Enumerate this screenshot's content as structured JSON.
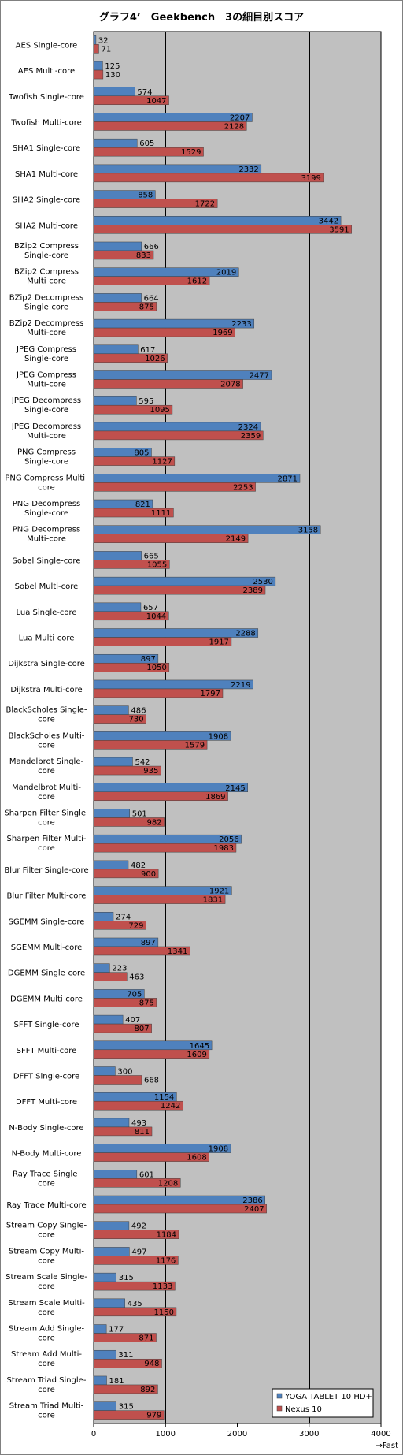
{
  "chart_data": {
    "type": "bar",
    "orientation": "horizontal",
    "title": "グラフ4’　Geekbench　3の細目別スコア",
    "x_axis_note": "→Fast",
    "xlim": [
      0,
      4000
    ],
    "xticks": [
      0,
      1000,
      2000,
      3000,
      4000
    ],
    "grid": true,
    "legend_position": "bottom-right",
    "colors": {
      "series1": "#4f81bd",
      "series2": "#c0504d",
      "plot_bg": "#c0c0c0",
      "grid": "#000000"
    },
    "categories": [
      "AES Single-core",
      "AES Multi-core",
      "Twofish Single-core",
      "Twofish Multi-core",
      "SHA1 Single-core",
      "SHA1 Multi-core",
      "SHA2 Single-core",
      "SHA2 Multi-core",
      "BZip2 Compress Single-core",
      "BZip2 Compress Multi-core",
      "BZip2 Decompress Single-core",
      "BZip2 Decompress Multi-core",
      "JPEG Compress Single-core",
      "JPEG Compress Multi-core",
      "JPEG Decompress Single-core",
      "JPEG Decompress Multi-core",
      "PNG Compress Single-core",
      "PNG Compress Multi-core",
      "PNG Decompress Single-core",
      "PNG Decompress Multi-core",
      "Sobel Single-core",
      "Sobel Multi-core",
      "Lua Single-core",
      "Lua Multi-core",
      "Dijkstra Single-core",
      "Dijkstra Multi-core",
      "BlackScholes Single-core",
      "BlackScholes Multi-core",
      "Mandelbrot Single-core",
      "Mandelbrot Multi-core",
      "Sharpen Filter Single-core",
      "Sharpen Filter Multi-core",
      "Blur Filter Single-core",
      "Blur Filter Multi-core",
      "SGEMM Single-core",
      "SGEMM Multi-core",
      "DGEMM Single-core",
      "DGEMM Multi-core",
      "SFFT Single-core",
      "SFFT Multi-core",
      "DFFT Single-core",
      "DFFT Multi-core",
      "N-Body Single-core",
      "N-Body Multi-core",
      "Ray Trace Single-core",
      "Ray Trace Multi-core",
      "Stream Copy Single-core",
      "Stream Copy Multi-core",
      "Stream Scale Single-core",
      "Stream Scale Multi-core",
      "Stream Add Single-core",
      "Stream Add Multi-core",
      "Stream Triad Single-core",
      "Stream Triad Multi-core"
    ],
    "category_lines": [
      [
        "AES Single-core"
      ],
      [
        "AES Multi-core"
      ],
      [
        "Twofish Single-core"
      ],
      [
        "Twofish Multi-core"
      ],
      [
        "SHA1 Single-core"
      ],
      [
        "SHA1 Multi-core"
      ],
      [
        "SHA2 Single-core"
      ],
      [
        "SHA2 Multi-core"
      ],
      [
        "BZip2 Compress",
        "Single-core"
      ],
      [
        "BZip2 Compress",
        "Multi-core"
      ],
      [
        "BZip2 Decompress",
        "Single-core"
      ],
      [
        "BZip2 Decompress",
        "Multi-core"
      ],
      [
        "JPEG Compress",
        "Single-core"
      ],
      [
        "JPEG Compress",
        "Multi-core"
      ],
      [
        "JPEG Decompress",
        "Single-core"
      ],
      [
        "JPEG Decompress",
        "Multi-core"
      ],
      [
        "PNG Compress",
        "Single-core"
      ],
      [
        "PNG Compress Multi-",
        "core"
      ],
      [
        "PNG Decompress",
        "Single-core"
      ],
      [
        "PNG Decompress",
        "Multi-core"
      ],
      [
        "Sobel Single-core"
      ],
      [
        "Sobel Multi-core"
      ],
      [
        "Lua Single-core"
      ],
      [
        "Lua Multi-core"
      ],
      [
        "Dijkstra Single-core"
      ],
      [
        "Dijkstra Multi-core"
      ],
      [
        "BlackScholes Single-",
        "core"
      ],
      [
        "BlackScholes Multi-",
        "core"
      ],
      [
        "Mandelbrot Single-",
        "core"
      ],
      [
        "Mandelbrot Multi-",
        "core"
      ],
      [
        "Sharpen Filter Single-",
        "core"
      ],
      [
        "Sharpen Filter Multi-",
        "core"
      ],
      [
        "Blur Filter Single-core"
      ],
      [
        "Blur Filter Multi-core"
      ],
      [
        "SGEMM Single-core"
      ],
      [
        "SGEMM Multi-core"
      ],
      [
        "DGEMM Single-core"
      ],
      [
        "DGEMM Multi-core"
      ],
      [
        "SFFT Single-core"
      ],
      [
        "SFFT Multi-core"
      ],
      [
        "DFFT Single-core"
      ],
      [
        "DFFT Multi-core"
      ],
      [
        "N-Body Single-core"
      ],
      [
        "N-Body Multi-core"
      ],
      [
        "Ray Trace Single-",
        "core"
      ],
      [
        "Ray Trace Multi-core"
      ],
      [
        "Stream Copy Single-",
        "core"
      ],
      [
        "Stream Copy Multi-",
        "core"
      ],
      [
        "Stream Scale Single-",
        "core"
      ],
      [
        "Stream Scale Multi-",
        "core"
      ],
      [
        "Stream Add Single-",
        "core"
      ],
      [
        "Stream Add Multi-",
        "core"
      ],
      [
        "Stream Triad Single-",
        "core"
      ],
      [
        "Stream Triad Multi-",
        "core"
      ]
    ],
    "series": [
      {
        "name": "YOGA TABLET 10 HD+",
        "values": [
          32,
          125,
          574,
          2207,
          605,
          2332,
          858,
          3442,
          666,
          2019,
          664,
          2233,
          617,
          2477,
          595,
          2324,
          805,
          2871,
          821,
          3158,
          665,
          2530,
          657,
          2288,
          897,
          2219,
          486,
          1908,
          542,
          2145,
          501,
          2056,
          482,
          1921,
          274,
          897,
          223,
          705,
          407,
          1645,
          300,
          1154,
          493,
          1908,
          601,
          2386,
          492,
          497,
          315,
          435,
          177,
          311,
          181,
          315
        ]
      },
      {
        "name": "Nexus 10",
        "values": [
          71,
          130,
          1047,
          2128,
          1529,
          3199,
          1722,
          3591,
          833,
          1612,
          875,
          1969,
          1026,
          2078,
          1095,
          2359,
          1127,
          2253,
          1111,
          2149,
          1055,
          2389,
          1044,
          1917,
          1050,
          1797,
          730,
          1579,
          935,
          1869,
          982,
          1983,
          900,
          1831,
          729,
          1341,
          463,
          875,
          807,
          1609,
          668,
          1242,
          811,
          1608,
          1208,
          2407,
          1184,
          1176,
          1133,
          1150,
          871,
          948,
          892,
          979
        ]
      }
    ]
  }
}
